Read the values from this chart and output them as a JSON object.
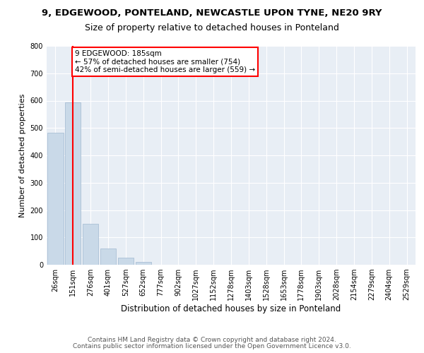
{
  "title": "9, EDGEWOOD, PONTELAND, NEWCASTLE UPON TYNE, NE20 9RY",
  "subtitle": "Size of property relative to detached houses in Ponteland",
  "xlabel": "Distribution of detached houses by size in Ponteland",
  "ylabel": "Number of detached properties",
  "bar_labels": [
    "26sqm",
    "151sqm",
    "276sqm",
    "401sqm",
    "527sqm",
    "652sqm",
    "777sqm",
    "902sqm",
    "1027sqm",
    "1152sqm",
    "1278sqm",
    "1403sqm",
    "1528sqm",
    "1653sqm",
    "1778sqm",
    "1903sqm",
    "2028sqm",
    "2154sqm",
    "2279sqm",
    "2404sqm",
    "2529sqm"
  ],
  "bar_values": [
    483,
    593,
    150,
    60,
    25,
    10,
    0,
    0,
    0,
    0,
    0,
    0,
    0,
    0,
    0,
    0,
    0,
    0,
    0,
    0,
    0
  ],
  "bar_color": "#c9d9e8",
  "bar_edge_color": "#a0b8d0",
  "vline_bin_index": 1,
  "annotation_text": "9 EDGEWOOD: 185sqm\n← 57% of detached houses are smaller (754)\n42% of semi-detached houses are larger (559) →",
  "annotation_box_color": "white",
  "annotation_box_edge": "red",
  "vline_color": "red",
  "ylim": [
    0,
    800
  ],
  "yticks": [
    0,
    100,
    200,
    300,
    400,
    500,
    600,
    700,
    800
  ],
  "background_color": "#e8eef5",
  "footer_line1": "Contains HM Land Registry data © Crown copyright and database right 2024.",
  "footer_line2": "Contains public sector information licensed under the Open Government Licence v3.0.",
  "title_fontsize": 9.5,
  "subtitle_fontsize": 9,
  "xlabel_fontsize": 8.5,
  "ylabel_fontsize": 8,
  "tick_fontsize": 7,
  "annotation_fontsize": 7.5,
  "footer_fontsize": 6.5
}
